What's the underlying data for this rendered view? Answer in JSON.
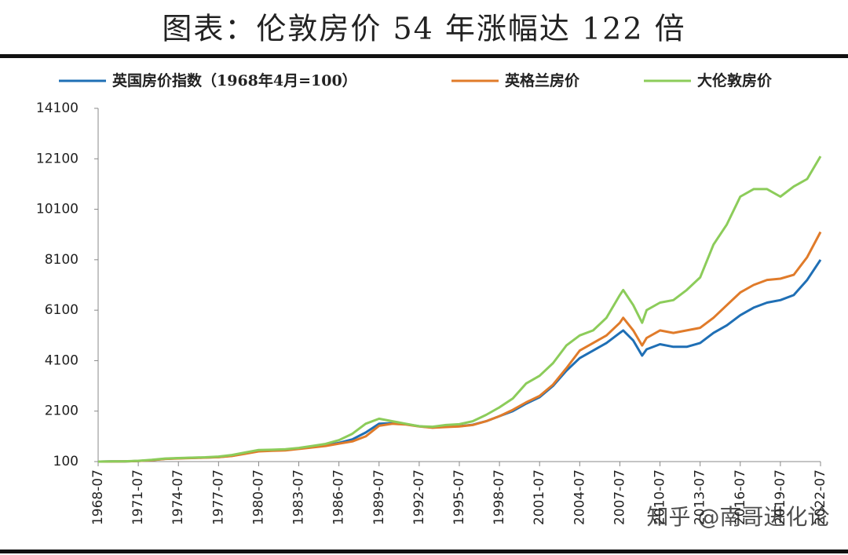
{
  "chart_data": {
    "type": "line",
    "title": "图表：伦敦房价 54 年涨幅达 122 倍",
    "watermark": "知乎 @南哥进化论",
    "x": [
      "1968-07",
      "1969-07",
      "1970-07",
      "1971-07",
      "1972-07",
      "1973-07",
      "1974-07",
      "1975-07",
      "1976-07",
      "1977-07",
      "1978-07",
      "1979-07",
      "1980-07",
      "1981-07",
      "1982-07",
      "1983-07",
      "1984-07",
      "1985-07",
      "1986-07",
      "1987-07",
      "1988-07",
      "1989-07",
      "1990-07",
      "1991-07",
      "1992-07",
      "1993-07",
      "1994-07",
      "1995-07",
      "1996-07",
      "1997-07",
      "1998-07",
      "1999-07",
      "2000-07",
      "2001-07",
      "2002-07",
      "2003-07",
      "2004-07",
      "2005-07",
      "2006-07",
      "2007-07",
      "2007-10",
      "2008-07",
      "2009-03",
      "2009-07",
      "2010-07",
      "2011-07",
      "2012-07",
      "2013-07",
      "2014-07",
      "2015-07",
      "2016-07",
      "2017-07",
      "2018-07",
      "2019-07",
      "2020-07",
      "2021-07",
      "2022-07"
    ],
    "series": [
      {
        "name": "英国房价指数（1968年4月=100）",
        "color": "#1f6fb5",
        "values": [
          100,
          105,
          110,
          125,
          160,
          210,
          230,
          245,
          260,
          280,
          330,
          420,
          520,
          540,
          560,
          620,
          680,
          740,
          840,
          980,
          1250,
          1600,
          1620,
          1580,
          1500,
          1450,
          1480,
          1500,
          1560,
          1700,
          1900,
          2100,
          2400,
          2650,
          3100,
          3700,
          4200,
          4500,
          4800,
          5200,
          5300,
          4900,
          4300,
          4550,
          4750,
          4650,
          4650,
          4800,
          5200,
          5500,
          5900,
          6200,
          6400,
          6500,
          6700,
          7300,
          8100
        ]
      },
      {
        "name": "英格兰房价",
        "color": "#e07b2a",
        "values": [
          100,
          104,
          108,
          122,
          155,
          205,
          225,
          240,
          255,
          275,
          320,
          410,
          505,
          525,
          545,
          600,
          660,
          720,
          810,
          900,
          1100,
          1520,
          1600,
          1570,
          1490,
          1440,
          1470,
          1490,
          1550,
          1700,
          1900,
          2150,
          2450,
          2700,
          3150,
          3800,
          4500,
          4800,
          5100,
          5600,
          5800,
          5300,
          4700,
          5000,
          5300,
          5200,
          5300,
          5400,
          5800,
          6300,
          6800,
          7100,
          7300,
          7350,
          7500,
          8200,
          9200
        ]
      },
      {
        "name": "大伦敦房价",
        "color": "#8ccc5a",
        "values": [
          100,
          106,
          112,
          130,
          170,
          220,
          240,
          255,
          270,
          300,
          360,
          460,
          560,
          570,
          590,
          640,
          720,
          800,
          950,
          1200,
          1600,
          1800,
          1700,
          1600,
          1500,
          1480,
          1550,
          1580,
          1700,
          1950,
          2250,
          2600,
          3200,
          3500,
          4000,
          4700,
          5100,
          5300,
          5800,
          6700,
          6900,
          6300,
          5600,
          6100,
          6400,
          6500,
          6900,
          7400,
          8700,
          9500,
          10600,
          10900,
          10900,
          10600,
          11000,
          11300,
          12200
        ]
      }
    ],
    "xlim": [
      "1968-07",
      "2022-07"
    ],
    "xticks": [
      "1968-07",
      "1971-07",
      "1974-07",
      "1977-07",
      "1980-07",
      "1983-07",
      "1986-07",
      "1989-07",
      "1992-07",
      "1995-07",
      "1998-07",
      "2001-07",
      "2004-07",
      "2007-07",
      "2010-07",
      "2013-07",
      "2016-07",
      "2019-07",
      "2022-07"
    ],
    "ylim": [
      100,
      14100
    ],
    "yticks": [
      100,
      2100,
      4100,
      6100,
      8100,
      10100,
      12100,
      14100
    ]
  }
}
